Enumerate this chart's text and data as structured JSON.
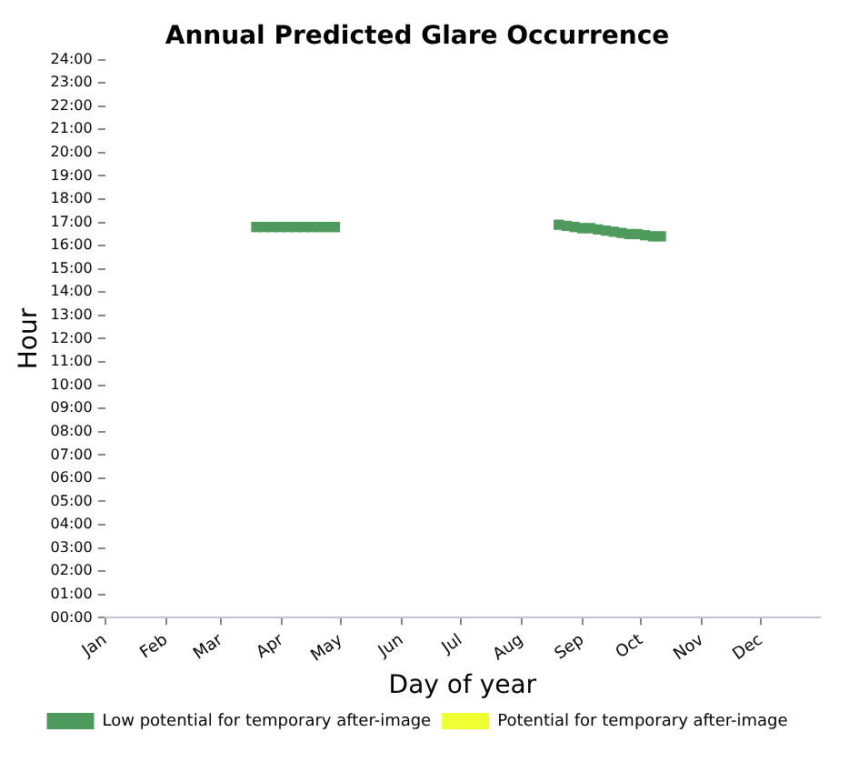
{
  "chart_data": {
    "type": "scatter",
    "title": "Annual Predicted Glare Occurrence",
    "xlabel": "Day of year",
    "ylabel": "Hour",
    "series": [
      {
        "name": "Low potential for temporary after-image",
        "color": "#4e9a5c",
        "x": [
          "--03-19",
          "--03-23",
          "--03-27",
          "--03-31",
          "--04-04",
          "--04-08",
          "--04-12",
          "--04-16",
          "--04-20",
          "--04-24",
          "--04-28",
          "--08-20",
          "--08-24",
          "--08-28",
          "--09-01",
          "--09-05",
          "--09-09",
          "--09-13",
          "--09-17",
          "--09-21",
          "--09-25",
          "--09-29",
          "--10-03",
          "--10-07",
          "--10-11"
        ],
        "values": [
          16.8,
          16.8,
          16.8,
          16.8,
          16.8,
          16.8,
          16.8,
          16.8,
          16.8,
          16.8,
          16.8,
          16.9,
          16.85,
          16.8,
          16.75,
          16.75,
          16.7,
          16.65,
          16.6,
          16.55,
          16.5,
          16.5,
          16.45,
          16.4,
          16.4
        ]
      },
      {
        "name": "Potential for temporary after-image",
        "color": "#eeff33"
      }
    ],
    "xlim": [
      "--01-01",
      "--12-31"
    ],
    "xticks": [
      {
        "value": "--01-01",
        "label": "Jan"
      },
      {
        "value": "--02-01",
        "label": "Feb"
      },
      {
        "value": "--03-01",
        "label": "Mar"
      },
      {
        "value": "--04-01",
        "label": "Apr"
      },
      {
        "value": "--05-01",
        "label": "May"
      },
      {
        "value": "--06-01",
        "label": "Jun"
      },
      {
        "value": "--07-01",
        "label": "Jul"
      },
      {
        "value": "--08-01",
        "label": "Aug"
      },
      {
        "value": "--09-01",
        "label": "Sep"
      },
      {
        "value": "--10-01",
        "label": "Oct"
      },
      {
        "value": "--11-01",
        "label": "Nov"
      },
      {
        "value": "--12-01",
        "label": "Dec"
      }
    ],
    "ylim": [
      0,
      24
    ],
    "yticks": [
      {
        "value": 0,
        "label": "00:00"
      },
      {
        "value": 1,
        "label": "01:00"
      },
      {
        "value": 2,
        "label": "02:00"
      },
      {
        "value": 3,
        "label": "03:00"
      },
      {
        "value": 4,
        "label": "04:00"
      },
      {
        "value": 5,
        "label": "05:00"
      },
      {
        "value": 6,
        "label": "06:00"
      },
      {
        "value": 7,
        "label": "07:00"
      },
      {
        "value": 8,
        "label": "08:00"
      },
      {
        "value": 9,
        "label": "09:00"
      },
      {
        "value": 10,
        "label": "10:00"
      },
      {
        "value": 11,
        "label": "11:00"
      },
      {
        "value": 12,
        "label": "12:00"
      },
      {
        "value": 13,
        "label": "13:00"
      },
      {
        "value": 14,
        "label": "14:00"
      },
      {
        "value": 15,
        "label": "15:00"
      },
      {
        "value": 16,
        "label": "16:00"
      },
      {
        "value": 17,
        "label": "17:00"
      },
      {
        "value": 18,
        "label": "18:00"
      },
      {
        "value": 19,
        "label": "19:00"
      },
      {
        "value": 20,
        "label": "20:00"
      },
      {
        "value": 21,
        "label": "21:00"
      },
      {
        "value": 22,
        "label": "22:00"
      },
      {
        "value": 23,
        "label": "23:00"
      },
      {
        "value": 24,
        "label": "24:00"
      }
    ],
    "grid": false,
    "legend": "bottom",
    "marker": "square"
  }
}
